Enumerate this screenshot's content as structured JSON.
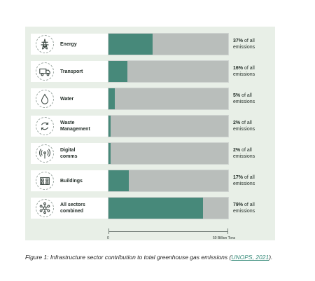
{
  "chart_data": {
    "type": "bar",
    "orientation": "horizontal",
    "categories": [
      "Energy",
      "Transport",
      "Water",
      "Waste\nManagement",
      "Digital\ncomms",
      "Buildings",
      "All sectors\ncombined"
    ],
    "values": [
      37,
      16,
      5,
      2,
      2,
      17,
      79
    ],
    "value_unit": "% of all emissions",
    "value_labels": [
      {
        "pct": "37%",
        "rest": " of all",
        "line2": "emissions"
      },
      {
        "pct": "16%",
        "rest": " of all",
        "line2": "emissions"
      },
      {
        "pct": "5%",
        "rest": " of all",
        "line2": "emissions"
      },
      {
        "pct": "2%",
        "rest": " of all",
        "line2": "emissions"
      },
      {
        "pct": "2%",
        "rest": " of all",
        "line2": "emissions"
      },
      {
        "pct": "17%",
        "rest": " of all",
        "line2": "emissions"
      },
      {
        "pct": "79%",
        "rest": " of all",
        "line2": "emissions"
      }
    ],
    "icons": [
      "power-pylon-icon",
      "truck-icon",
      "water-drop-icon",
      "recycle-icon",
      "antenna-icon",
      "building-icon",
      "network-icon"
    ],
    "axis": {
      "min_label": "0",
      "max_label": "50 Billion Tons"
    },
    "colors": {
      "fill": "#47897a",
      "track": "#b9bebb",
      "panel": "#e8efe7"
    }
  },
  "caption": {
    "text": "Figure 1: Infrastructure sector contribution to total greenhouse gas emissions (",
    "link": "UNOPS, 2021",
    "end": ")."
  }
}
